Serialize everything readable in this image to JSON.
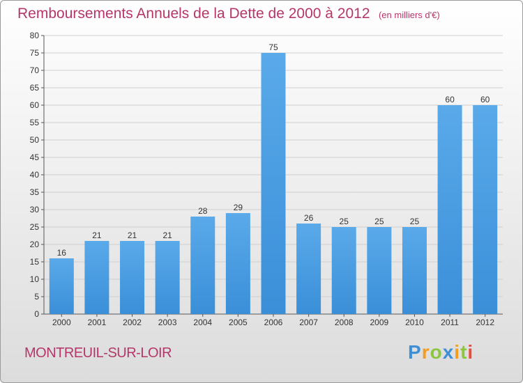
{
  "chart_data": {
    "type": "bar",
    "title": "Remboursements Annuels de la Dette de 2000 à 2012",
    "subtitle": "(en milliers d'€)",
    "categories": [
      "2000",
      "2001",
      "2002",
      "2003",
      "2004",
      "2005",
      "2006",
      "2007",
      "2008",
      "2009",
      "2010",
      "2011",
      "2012"
    ],
    "values": [
      16,
      21,
      21,
      21,
      28,
      29,
      75,
      26,
      25,
      25,
      25,
      60,
      60
    ],
    "ylim": [
      0,
      80
    ],
    "yticks": [
      0,
      5,
      10,
      15,
      20,
      25,
      30,
      35,
      40,
      45,
      50,
      55,
      60,
      65,
      70,
      75,
      80
    ],
    "grid": true,
    "bar_color": "#3a8fd8",
    "bar_color_light": "#5aaaea"
  },
  "commune": "MONTREUIL-SUR-LOIR",
  "logo_text": "Proxiti",
  "colors": {
    "title": "#b5366a",
    "logo_blue": "#3d8fd6",
    "logo_orange": "#f39c1d",
    "logo_green": "#8cc63f"
  }
}
